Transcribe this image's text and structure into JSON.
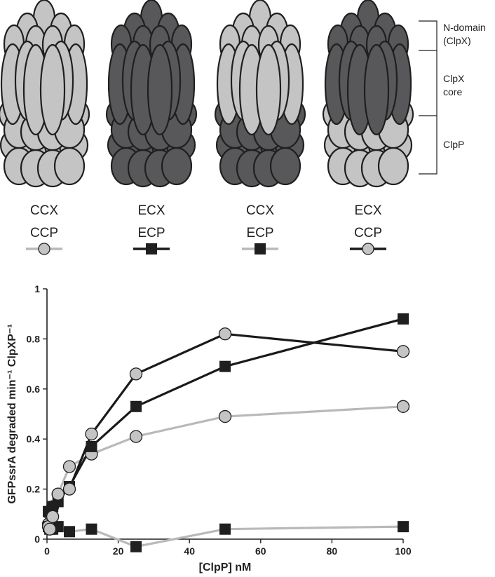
{
  "colors": {
    "light": "#c4c4c4",
    "dark": "#58585a",
    "outline": "#1f1f1f",
    "light_line": "#b9b9b9",
    "dark_line": "#1a1a1a"
  },
  "schematic": {
    "domain_labels": {
      "n_domain": [
        "N-domain",
        "(ClpX)"
      ],
      "clpx_core": [
        "ClpX",
        "core"
      ],
      "clpp": [
        "ClpP"
      ]
    },
    "complexes": [
      {
        "id": "ccx-ccp",
        "clpx_shade": "light",
        "clpp_shade": "light",
        "line1": "CCX",
        "line2": "CCP",
        "legend_line": "light",
        "legend_marker": "circle"
      },
      {
        "id": "ecx-ecp",
        "clpx_shade": "dark",
        "clpp_shade": "dark",
        "line1": "ECX",
        "line2": "ECP",
        "legend_line": "dark",
        "legend_marker": "square"
      },
      {
        "id": "ccx-ecp",
        "clpx_shade": "light",
        "clpp_shade": "dark",
        "line1": "CCX",
        "line2": "ECP",
        "legend_line": "light",
        "legend_marker": "square"
      },
      {
        "id": "ecx-ccp",
        "clpx_shade": "dark",
        "clpp_shade": "light",
        "line1": "ECX",
        "line2": "CCP",
        "legend_line": "dark",
        "legend_marker": "circle"
      }
    ]
  },
  "chart_data": {
    "type": "line",
    "xlabel": "[ClpP] nM",
    "ylabel": "GFPssrA degraded min⁻¹ ClpXP⁻¹",
    "xlim": [
      0,
      100
    ],
    "ylim": [
      0,
      1
    ],
    "xticks": [
      0,
      20,
      40,
      60,
      80,
      100
    ],
    "yticks": [
      0,
      0.2,
      0.4,
      0.6,
      0.8,
      1
    ],
    "ytick_labels": [
      "0",
      "0.2",
      "0.4",
      "0.6",
      "0.8",
      "1"
    ],
    "series": [
      {
        "name": "CCX CCP",
        "line": "light",
        "marker": "circle",
        "x": [
          0.4,
          0.8,
          1.6,
          3.1,
          6.3,
          12.5,
          25,
          50,
          100
        ],
        "y": [
          0.06,
          0.1,
          0.13,
          0.18,
          0.29,
          0.34,
          0.41,
          0.49,
          0.53
        ]
      },
      {
        "name": "ECX ECP",
        "line": "dark",
        "marker": "square",
        "x": [
          0.4,
          0.8,
          1.6,
          3.1,
          6.3,
          12.5,
          25,
          50,
          100
        ],
        "y": [
          0.11,
          0.11,
          0.13,
          0.15,
          0.21,
          0.37,
          0.53,
          0.69,
          0.88
        ]
      },
      {
        "name": "CCX ECP",
        "line": "light",
        "marker": "square",
        "x": [
          0.4,
          0.8,
          1.6,
          3.1,
          6.3,
          12.5,
          25,
          50,
          100
        ],
        "y": [
          0.05,
          0.04,
          0.04,
          0.05,
          0.03,
          0.04,
          -0.03,
          0.04,
          0.05
        ]
      },
      {
        "name": "ECX CCP",
        "line": "dark",
        "marker": "circle",
        "x": [
          0.4,
          0.8,
          1.6,
          3.1,
          6.3,
          12.5,
          25,
          50,
          100
        ],
        "y": [
          0.05,
          0.04,
          0.09,
          0.18,
          0.2,
          0.42,
          0.66,
          0.82,
          0.75
        ]
      }
    ]
  }
}
